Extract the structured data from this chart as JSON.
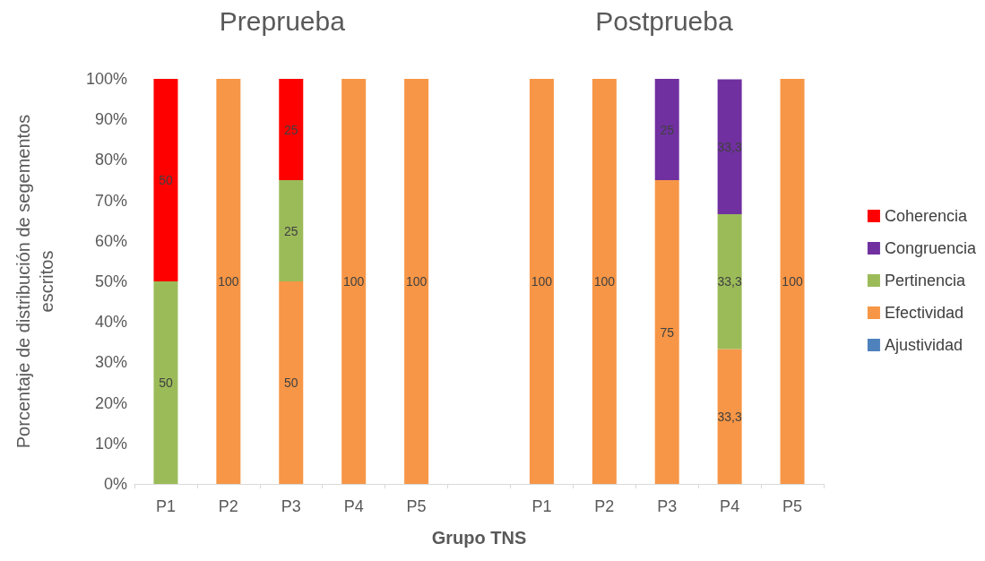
{
  "chart_data": {
    "type": "bar",
    "stacked": true,
    "xlabel": "Grupo TNS",
    "ylabel": "Porcentaje de distribución de segementos escritos",
    "annotations": [
      "Preprueba",
      "Postprueba"
    ],
    "categories": [
      "P1",
      "P2",
      "P3",
      "P4",
      "P5",
      null,
      "P1",
      "P2",
      "P3",
      "P4",
      "P5"
    ],
    "ylim": [
      0,
      100
    ],
    "yticks": [
      {
        "value": 0,
        "label": "0%"
      },
      {
        "value": 10,
        "label": "10%"
      },
      {
        "value": 20,
        "label": "20%"
      },
      {
        "value": 30,
        "label": "30%"
      },
      {
        "value": 40,
        "label": "40%"
      },
      {
        "value": 50,
        "label": "50%"
      },
      {
        "value": 60,
        "label": "60%"
      },
      {
        "value": 70,
        "label": "70%"
      },
      {
        "value": 80,
        "label": "80%"
      },
      {
        "value": 90,
        "label": "90%"
      },
      {
        "value": 100,
        "label": "100%"
      }
    ],
    "legend": "right",
    "grid": false,
    "series": [
      {
        "name": "Ajustividad",
        "color": "#4f81bd",
        "values": [
          null,
          null,
          null,
          null,
          null,
          null,
          null,
          null,
          null,
          null,
          null
        ]
      },
      {
        "name": "Efectividad",
        "color": "#f79646",
        "values": [
          null,
          100,
          50,
          100,
          100,
          null,
          100,
          100,
          75,
          33.3,
          100
        ],
        "value_labels": [
          null,
          "100",
          "50",
          "100",
          "100",
          null,
          "100",
          "100",
          "75",
          "33,3",
          "100"
        ]
      },
      {
        "name": "Pertinencia",
        "color": "#9bbb59",
        "values": [
          50,
          null,
          25,
          null,
          null,
          null,
          null,
          null,
          null,
          33.3,
          null
        ],
        "value_labels": [
          "50",
          null,
          "25",
          null,
          null,
          null,
          null,
          null,
          null,
          "33,3",
          null
        ]
      },
      {
        "name": "Congruencia",
        "color": "#7030a0",
        "values": [
          null,
          null,
          null,
          null,
          null,
          null,
          null,
          null,
          25,
          33.3,
          null
        ],
        "value_labels": [
          null,
          null,
          null,
          null,
          null,
          null,
          null,
          null,
          "25",
          "33,3",
          null
        ]
      },
      {
        "name": "Coherencia",
        "color": "#ff0000",
        "values": [
          50,
          null,
          25,
          null,
          null,
          null,
          null,
          null,
          null,
          null,
          null
        ],
        "value_labels": [
          "50",
          null,
          "25",
          null,
          null,
          null,
          null,
          null,
          null,
          null,
          null
        ]
      }
    ]
  }
}
